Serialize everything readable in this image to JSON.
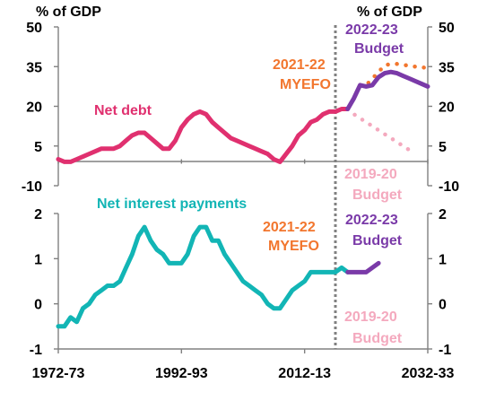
{
  "colors": {
    "net_debt": "#e0306f",
    "interest": "#12b5b5",
    "myefo_2021_22": "#f2762e",
    "budget_2022_23": "#7a3aa8",
    "budget_2019_20": "#f4a9be",
    "divider": "#808080",
    "axis": "#808080"
  },
  "chart_data": [
    {
      "type": "line",
      "panel": "top",
      "y_unit_left": "% of GDP",
      "y_unit_right": "% of GDP",
      "ylim": [
        -10,
        50
      ],
      "yticks": [
        "50",
        "35",
        "20",
        "5",
        "-10"
      ],
      "ytick_values": [
        50,
        35,
        20,
        5,
        -10
      ],
      "annotations": {
        "net_debt": "Net debt",
        "myefo": [
          "2021-22",
          "MYEFO"
        ],
        "budget_2022_23": [
          "2022-23",
          "Budget"
        ],
        "budget_2019_20": [
          "2019-20",
          "Budget"
        ]
      },
      "series": [
        {
          "name": "Net debt",
          "style": "solid",
          "x": [
            1972,
            1973,
            1974,
            1975,
            1976,
            1977,
            1978,
            1979,
            1980,
            1981,
            1982,
            1983,
            1984,
            1985,
            1986,
            1987,
            1988,
            1989,
            1990,
            1991,
            1992,
            1993,
            1994,
            1995,
            1996,
            1997,
            1998,
            1999,
            2000,
            2001,
            2002,
            2003,
            2004,
            2005,
            2006,
            2007,
            2008,
            2009,
            2010,
            2011,
            2012,
            2013,
            2014,
            2015,
            2016,
            2017,
            2018,
            2019
          ],
          "y": [
            0,
            -1,
            -1,
            0,
            1,
            2,
            3,
            4,
            4,
            4,
            5,
            7,
            9,
            10,
            10,
            8,
            6,
            4,
            4,
            7,
            12,
            15,
            17,
            18,
            17,
            14,
            12,
            10,
            8,
            7,
            6,
            5,
            4,
            3,
            2,
            0,
            -1,
            2,
            5,
            9,
            11,
            14,
            15,
            17,
            18,
            18,
            19,
            19
          ]
        },
        {
          "name": "2019-20 Budget",
          "style": "dotted",
          "x": [
            2019,
            2020,
            2021,
            2022,
            2023,
            2024,
            2025,
            2026,
            2027,
            2028,
            2029,
            2030
          ],
          "y": [
            19,
            17,
            15.5,
            14,
            12.5,
            11,
            9.5,
            8,
            6.5,
            5,
            3.5,
            2
          ]
        },
        {
          "name": "2021-22 MYEFO",
          "style": "dotted",
          "x": [
            2019,
            2020,
            2021,
            2022,
            2023,
            2024,
            2025,
            2026,
            2027,
            2028,
            2029,
            2030,
            2031,
            2032
          ],
          "y": [
            19,
            23,
            28,
            28,
            30.5,
            33,
            35.5,
            36,
            36,
            35.7,
            35.3,
            35,
            34.7,
            34.5
          ]
        },
        {
          "name": "2022-23 Budget",
          "style": "solid",
          "x": [
            2019,
            2020,
            2021,
            2022,
            2023,
            2024,
            2025,
            2026,
            2027,
            2028,
            2029,
            2030,
            2031,
            2032
          ],
          "y": [
            19,
            23,
            28,
            27.5,
            28,
            31,
            32.5,
            33,
            32.5,
            31.5,
            30.5,
            29.5,
            28.5,
            27.5
          ]
        }
      ]
    },
    {
      "type": "line",
      "panel": "bottom",
      "ylim": [
        -1,
        2
      ],
      "yticks": [
        "2",
        "1",
        "0",
        "-1"
      ],
      "ytick_values": [
        2,
        1,
        0,
        -1
      ],
      "xticks": [
        "1972-73",
        "1992-93",
        "2012-13",
        "2032-33"
      ],
      "xtick_values": [
        1972,
        1992,
        2012,
        2032
      ],
      "annotations": {
        "interest": "Net interest payments",
        "myefo": [
          "2021-22",
          "MYEFO"
        ],
        "budget_2022_23": [
          "2022-23",
          "Budget"
        ],
        "budget_2019_20": [
          "2019-20",
          "Budget"
        ]
      },
      "series": [
        {
          "name": "Net interest payments",
          "style": "solid",
          "x": [
            1972,
            1973,
            1974,
            1975,
            1976,
            1977,
            1978,
            1979,
            1980,
            1981,
            1982,
            1983,
            1984,
            1985,
            1986,
            1987,
            1988,
            1989,
            1990,
            1991,
            1992,
            1993,
            1994,
            1995,
            1996,
            1997,
            1998,
            1999,
            2000,
            2001,
            2002,
            2003,
            2004,
            2005,
            2006,
            2007,
            2008,
            2009,
            2010,
            2011,
            2012,
            2013,
            2014,
            2015,
            2016,
            2017,
            2018,
            2019
          ],
          "y": [
            -0.5,
            -0.5,
            -0.3,
            -0.4,
            -0.1,
            0,
            0.2,
            0.3,
            0.4,
            0.4,
            0.5,
            0.8,
            1.1,
            1.5,
            1.7,
            1.4,
            1.2,
            1.1,
            0.9,
            0.9,
            0.9,
            1.1,
            1.5,
            1.7,
            1.7,
            1.4,
            1.4,
            1.1,
            0.9,
            0.7,
            0.5,
            0.4,
            0.3,
            0.2,
            0,
            -0.1,
            -0.1,
            0.1,
            0.3,
            0.4,
            0.5,
            0.7,
            0.7,
            0.7,
            0.7,
            0.7,
            0.8,
            0.7
          ]
        },
        {
          "name": "2019-20 Budget",
          "style": "dotted",
          "x": [
            2019,
            2020,
            2021,
            2022,
            2023
          ],
          "y": [
            0.7,
            0.7,
            0.7,
            0.7,
            0.7
          ]
        },
        {
          "name": "2021-22 MYEFO",
          "style": "dotted",
          "x": [
            2019,
            2020,
            2021,
            2022,
            2023
          ],
          "y": [
            0.7,
            0.7,
            0.7,
            0.7,
            0.7
          ]
        },
        {
          "name": "2022-23 Budget",
          "style": "solid",
          "x": [
            2019,
            2020,
            2021,
            2022,
            2023,
            2024
          ],
          "y": [
            0.7,
            0.7,
            0.7,
            0.7,
            0.8,
            0.9
          ]
        }
      ]
    }
  ]
}
